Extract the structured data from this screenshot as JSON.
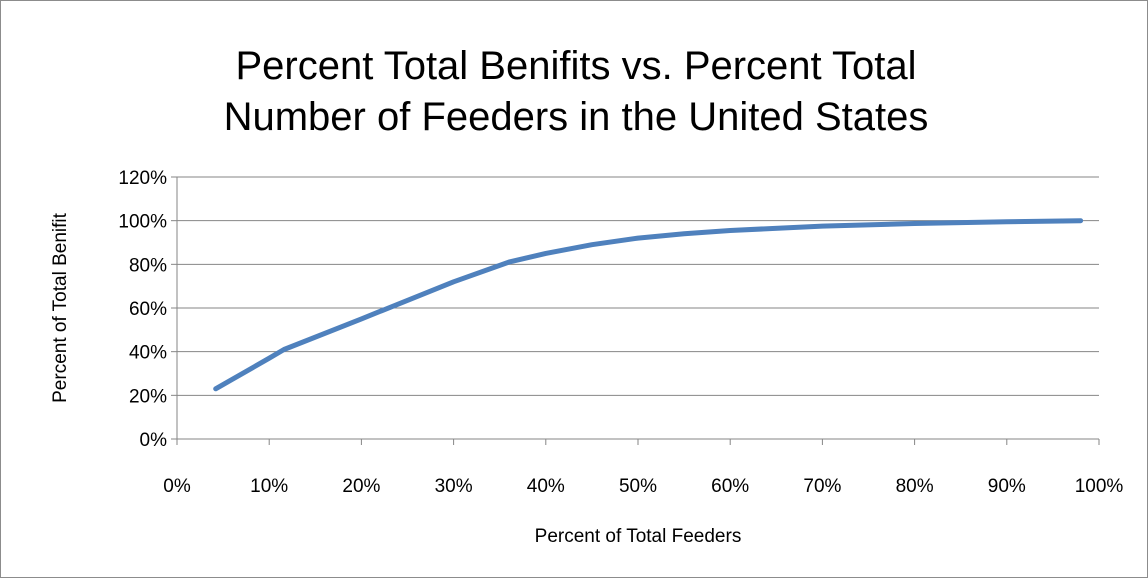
{
  "chart_data": {
    "type": "line",
    "title_lines": [
      "Percent Total Benifits vs. Percent Total",
      "Number of Feeders in the United States"
    ],
    "xlabel": "Percent of Total Feeders",
    "ylabel": "Percent of Total Benifit",
    "xlim": [
      0,
      1
    ],
    "ylim": [
      0,
      1.2
    ],
    "x_ticks": [
      0,
      0.1,
      0.2,
      0.3,
      0.4,
      0.5,
      0.6,
      0.7,
      0.8,
      0.9,
      1.0
    ],
    "x_tick_labels": [
      "0%",
      "10%",
      "20%",
      "30%",
      "40%",
      "50%",
      "60%",
      "70%",
      "80%",
      "90%",
      "100%"
    ],
    "y_ticks": [
      0,
      0.2,
      0.4,
      0.6,
      0.8,
      1.0,
      1.2
    ],
    "y_tick_labels": [
      "0%",
      "20%",
      "40%",
      "60%",
      "80%",
      "100%",
      "120%"
    ],
    "grid": "horizontal",
    "legend": "none",
    "series": [
      {
        "color": "#4F81BD",
        "x": [
          0.042,
          0.1,
          0.116,
          0.2,
          0.3,
          0.36,
          0.4,
          0.45,
          0.5,
          0.55,
          0.6,
          0.7,
          0.8,
          0.9,
          0.98
        ],
        "y": [
          0.23,
          0.37,
          0.41,
          0.55,
          0.72,
          0.81,
          0.85,
          0.89,
          0.92,
          0.94,
          0.955,
          0.975,
          0.987,
          0.995,
          1.0
        ]
      }
    ]
  }
}
